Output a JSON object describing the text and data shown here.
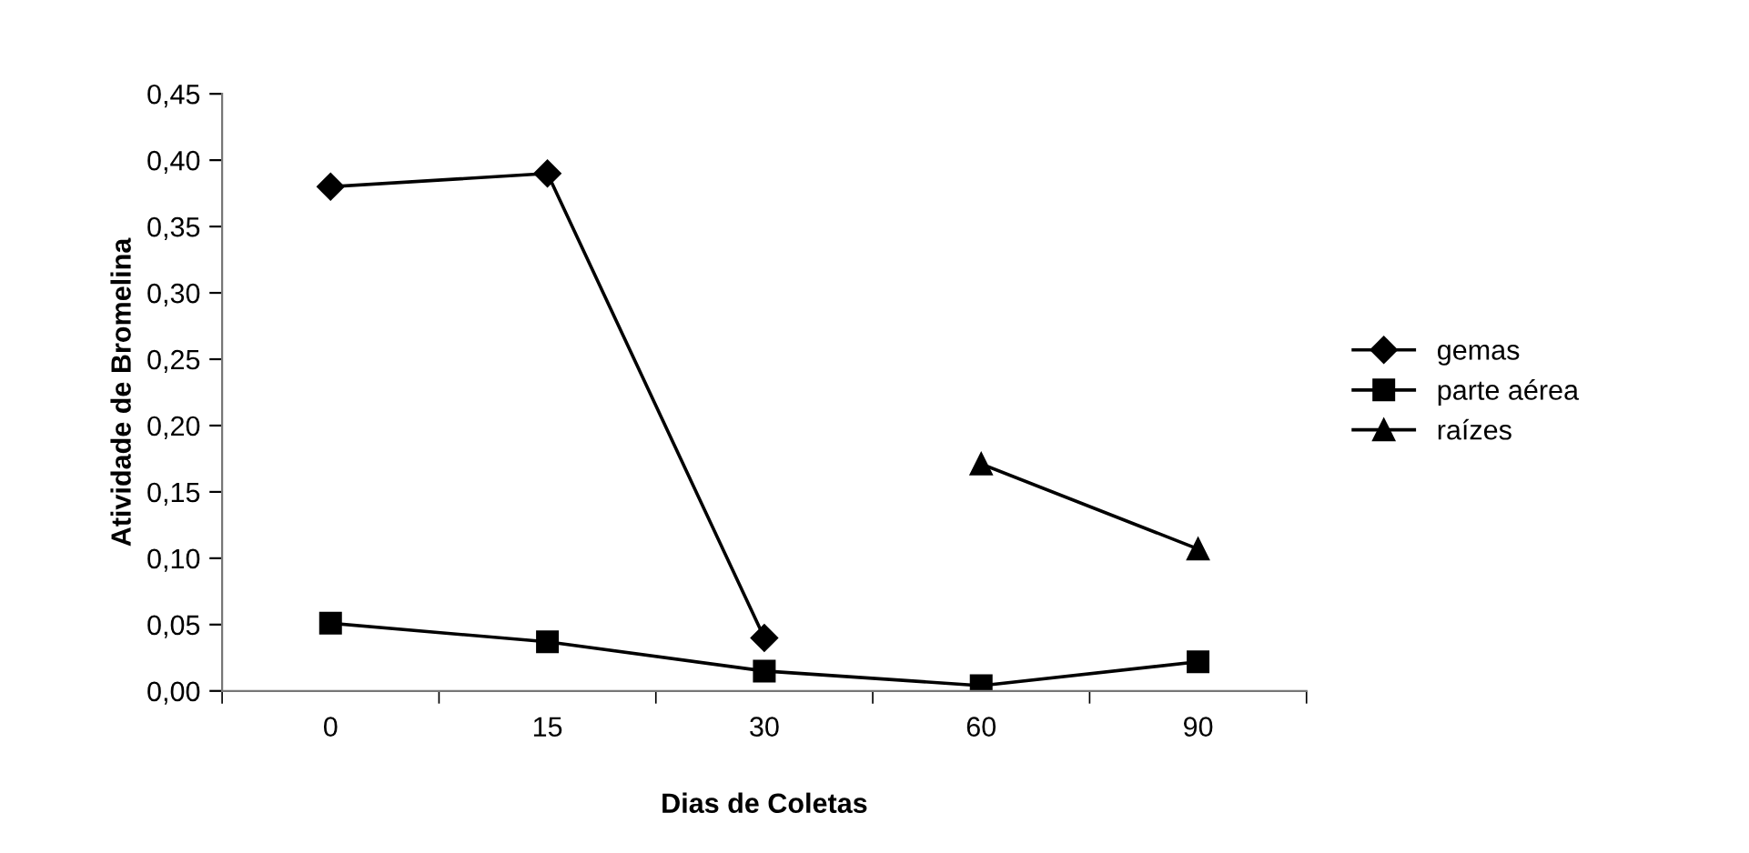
{
  "chart_data": {
    "type": "line",
    "xlabel": "Dias de Coletas",
    "ylabel": "Atividade de Bromelina",
    "categories": [
      "0",
      "15",
      "30",
      "60",
      "90"
    ],
    "series": [
      {
        "name": "gemas",
        "color": "#000000",
        "marker": "diamond",
        "values": [
          0.38,
          0.39,
          0.04,
          null,
          null
        ]
      },
      {
        "name": "parte aérea",
        "color": "#000000",
        "marker": "square",
        "values": [
          0.051,
          0.037,
          0.015,
          0.004,
          0.022
        ]
      },
      {
        "name": "raízes",
        "color": "#000000",
        "marker": "triangle",
        "values": [
          null,
          null,
          null,
          0.171,
          0.107
        ]
      }
    ],
    "ylim": [
      0,
      0.45
    ],
    "yticks": [
      {
        "value": 0,
        "label": "0,00"
      },
      {
        "value": 0.05,
        "label": "0,05"
      },
      {
        "value": 0.1,
        "label": "0,10"
      },
      {
        "value": 0.15,
        "label": "0,15"
      },
      {
        "value": 0.2,
        "label": "0,20"
      },
      {
        "value": 0.25,
        "label": "0,25"
      },
      {
        "value": 0.3,
        "label": "0,30"
      },
      {
        "value": 0.35,
        "label": "0,35"
      },
      {
        "value": 0.4,
        "label": "0,40"
      },
      {
        "value": 0.45,
        "label": "0,45"
      }
    ],
    "grid": false,
    "legend": "right",
    "line_style": "solid"
  }
}
